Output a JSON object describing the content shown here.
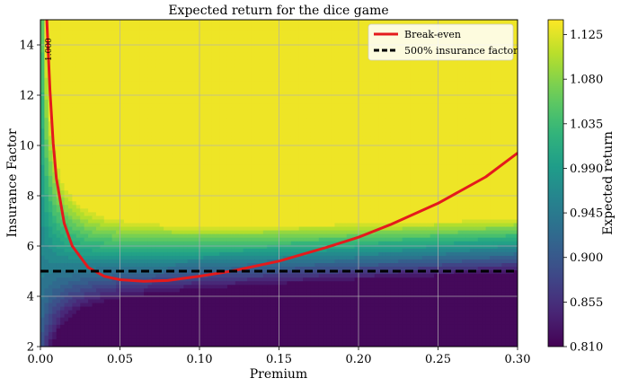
{
  "chart_data": {
    "type": "heatmap",
    "title": "Expected return for the dice game",
    "xlabel": "Premium",
    "ylabel": "Insurance Factor",
    "xlim": [
      0.0,
      0.3
    ],
    "ylim": [
      2,
      15
    ],
    "x_ticks": [
      "0.00",
      "0.05",
      "0.10",
      "0.15",
      "0.20",
      "0.25",
      "0.30"
    ],
    "y_ticks": [
      "2",
      "4",
      "6",
      "8",
      "10",
      "12",
      "14"
    ],
    "colorbar": {
      "label": "Expected return",
      "min": 0.81,
      "max": 1.14,
      "ticks": [
        "0.810",
        "0.855",
        "0.900",
        "0.945",
        "0.990",
        "1.035",
        "1.080",
        "1.125"
      ],
      "colormap": "viridis"
    },
    "grid": true,
    "legend_position": "top-right",
    "contour_label": "1.000",
    "series": [
      {
        "name": "Break-even",
        "color": "#e41a1c",
        "style": "solid",
        "x": [
          0.004,
          0.006,
          0.008,
          0.01,
          0.015,
          0.02,
          0.03,
          0.04,
          0.05,
          0.065,
          0.08,
          0.1,
          0.12,
          0.15,
          0.18,
          0.2,
          0.22,
          0.25,
          0.28,
          0.3
        ],
        "y": [
          15.0,
          12.2,
          10.1,
          8.7,
          6.9,
          6.0,
          5.15,
          4.8,
          4.66,
          4.6,
          4.63,
          4.8,
          5.0,
          5.4,
          5.95,
          6.35,
          6.85,
          7.7,
          8.75,
          9.7
        ]
      },
      {
        "name": "500% insurance factor",
        "color": "#000000",
        "style": "dashed",
        "x": [
          0.0,
          0.3
        ],
        "y": [
          5,
          5
        ]
      }
    ]
  }
}
